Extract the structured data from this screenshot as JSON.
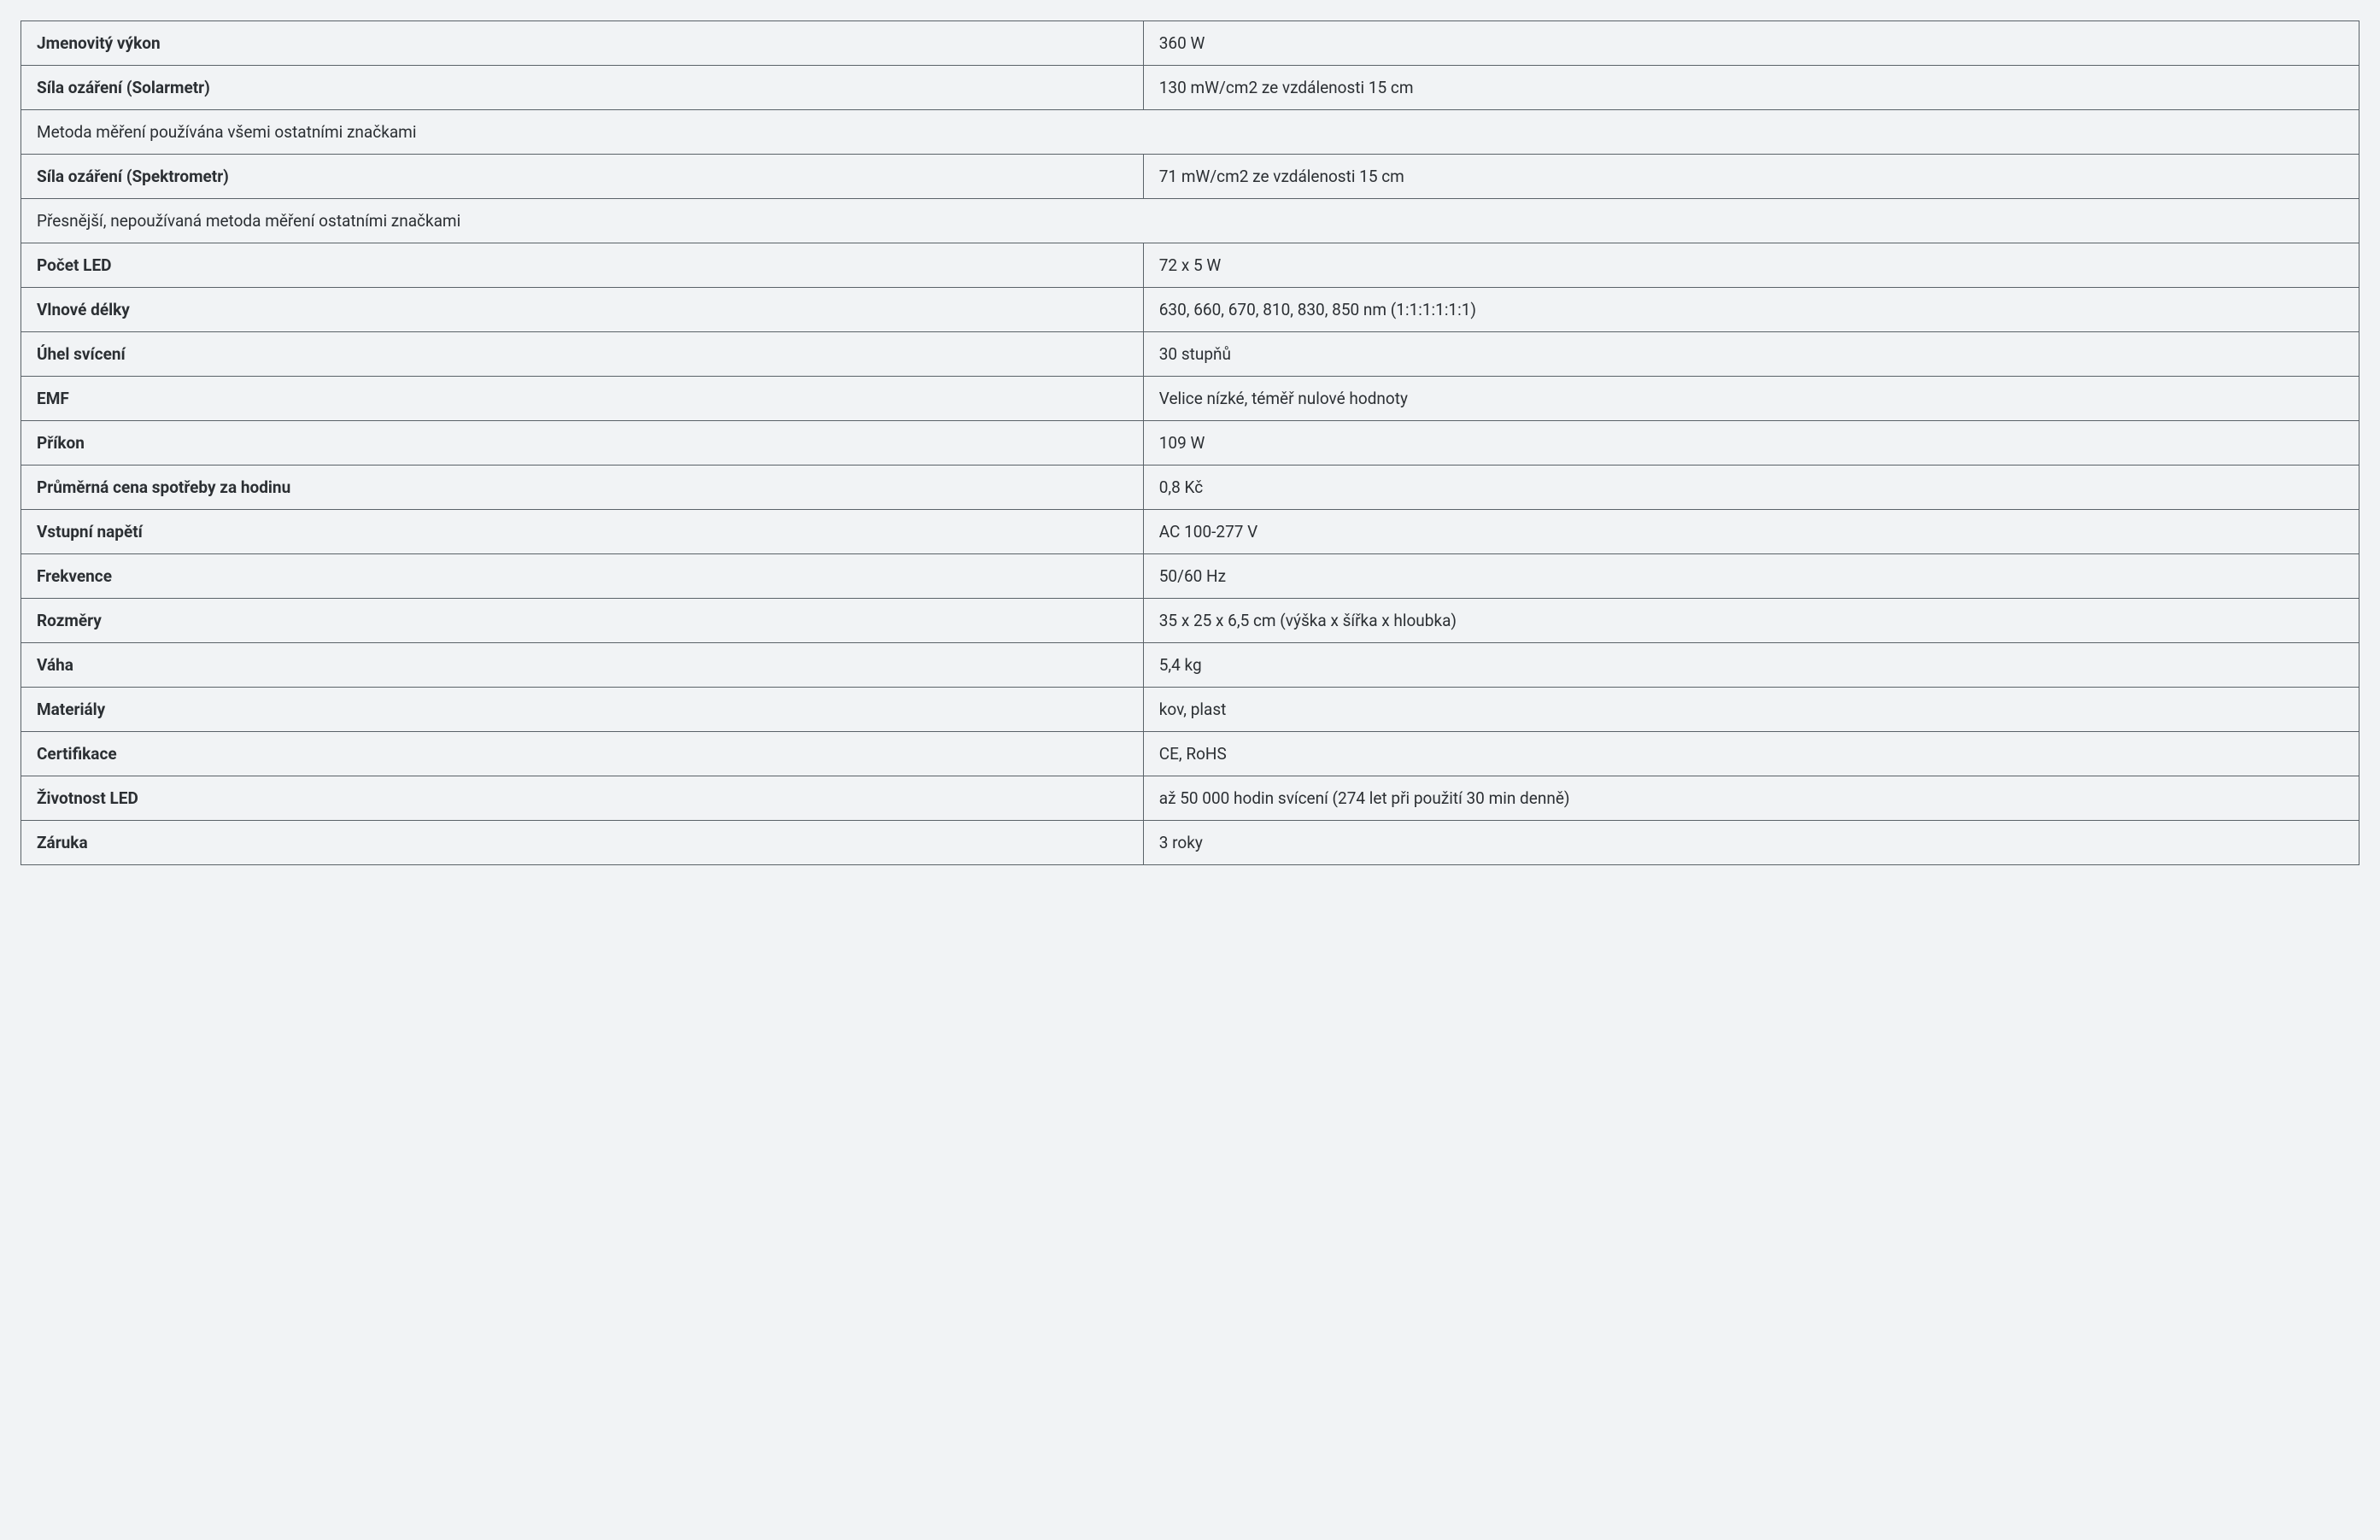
{
  "colors": {
    "background": "#f1f3f5",
    "border": "#5a6268",
    "text": "#2b2f33"
  },
  "table": {
    "fontsize": 19,
    "cell_padding_v": 14,
    "cell_padding_h": 18,
    "label_col_width_pct": 48,
    "rows": [
      {
        "type": "pair",
        "label": "Jmenovitý výkon",
        "value": "360 W"
      },
      {
        "type": "pair",
        "label": "Síla ozáření (Solarmetr)",
        "value": "130 mW/cm2 ze vzdálenosti 15 cm"
      },
      {
        "type": "note",
        "text": "Metoda měření používána všemi ostatními značkami"
      },
      {
        "type": "pair",
        "label": "Síla ozáření (Spektrometr)",
        "value": "71 mW/cm2 ze vzdálenosti 15 cm"
      },
      {
        "type": "note",
        "text": "Přesnější, nepoužívaná metoda měření ostatními značkami"
      },
      {
        "type": "pair",
        "label": "Počet LED",
        "value": "72 x 5 W"
      },
      {
        "type": "pair",
        "label": "Vlnové délky",
        "value": "630, 660, 670, 810, 830, 850 nm (1:1:1:1:1:1)"
      },
      {
        "type": "pair",
        "label": "Úhel svícení",
        "value": "30 stupňů"
      },
      {
        "type": "pair",
        "label": "EMF",
        "value": "Velice nízké, téměř nulové hodnoty"
      },
      {
        "type": "pair",
        "label": "Příkon",
        "value": "109 W"
      },
      {
        "type": "pair",
        "label": "Průměrná cena spotřeby za hodinu",
        "value": "0,8 Kč"
      },
      {
        "type": "pair",
        "label": "Vstupní napětí",
        "value": "AC 100-277 V"
      },
      {
        "type": "pair",
        "label": "Frekvence",
        "value": "50/60 Hz"
      },
      {
        "type": "pair",
        "label": "Rozměry",
        "value": "35 x 25 x 6,5 cm (výška x šířka x hloubka)"
      },
      {
        "type": "pair",
        "label": "Váha",
        "value": "5,4 kg"
      },
      {
        "type": "pair",
        "label": "Materiály",
        "value": "kov, plast"
      },
      {
        "type": "pair",
        "label": "Certifikace",
        "value": "CE, RoHS"
      },
      {
        "type": "pair",
        "label": "Životnost LED",
        "value": "až 50 000 hodin svícení (274 let při použití 30 min denně)"
      },
      {
        "type": "pair",
        "label": "Záruka",
        "value": "3 roky"
      }
    ]
  }
}
